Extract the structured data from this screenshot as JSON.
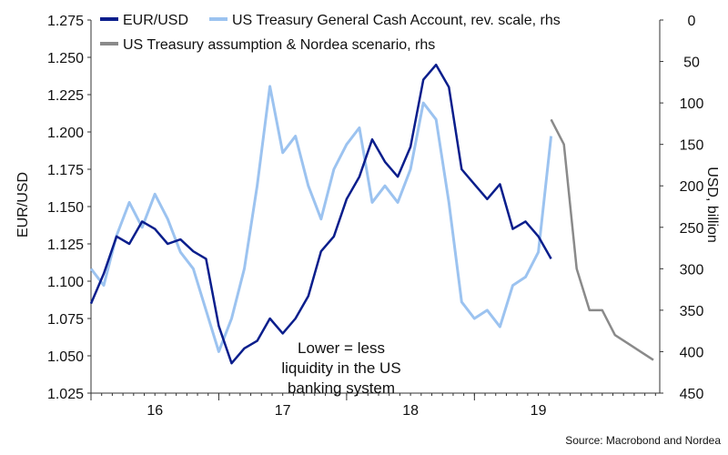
{
  "chart_data": {
    "type": "line",
    "title": "",
    "ylabel_left": "EUR/USD",
    "ylabel_right": "USD, billion",
    "ylim_left": [
      1.025,
      1.275
    ],
    "left_ticks": [
      "1.025",
      "1.050",
      "1.075",
      "1.100",
      "1.125",
      "1.150",
      "1.175",
      "1.200",
      "1.225",
      "1.250",
      "1.275"
    ],
    "ylim_right": [
      450,
      0
    ],
    "right_ticks": [
      "0",
      "50",
      "100",
      "150",
      "200",
      "250",
      "300",
      "350",
      "400",
      "450"
    ],
    "right_axis_reversed": true,
    "x_ticks": [
      "16",
      "17",
      "18",
      "19"
    ],
    "legend_position": "top-left",
    "colors": {
      "eurusd": "#0a1e8c",
      "tga": "#9cc3f0",
      "scenario": "#8a8a8a",
      "axis": "#333333"
    },
    "series": [
      {
        "name": "EUR/USD",
        "axis": "left",
        "x": [
          15.5,
          15.6,
          15.7,
          15.8,
          15.9,
          16.0,
          16.1,
          16.2,
          16.3,
          16.4,
          16.5,
          16.6,
          16.7,
          16.8,
          16.9,
          17.0,
          17.1,
          17.2,
          17.3,
          17.4,
          17.5,
          17.6,
          17.7,
          17.8,
          17.9,
          18.0,
          18.1,
          18.2,
          18.3,
          18.4,
          18.5,
          18.6,
          18.7,
          18.8,
          18.9,
          19.0,
          19.1
        ],
        "values": [
          1.085,
          1.105,
          1.13,
          1.125,
          1.14,
          1.135,
          1.125,
          1.128,
          1.12,
          1.115,
          1.07,
          1.045,
          1.055,
          1.06,
          1.075,
          1.065,
          1.075,
          1.09,
          1.12,
          1.13,
          1.155,
          1.17,
          1.195,
          1.18,
          1.17,
          1.19,
          1.235,
          1.245,
          1.23,
          1.175,
          1.165,
          1.155,
          1.165,
          1.135,
          1.14,
          1.13,
          1.115
        ]
      },
      {
        "name": "US Treasury General Cash Account, rev. scale, rhs",
        "axis": "right",
        "x": [
          15.5,
          15.6,
          15.7,
          15.8,
          15.9,
          16.0,
          16.1,
          16.2,
          16.3,
          16.4,
          16.5,
          16.6,
          16.7,
          16.8,
          16.9,
          17.0,
          17.1,
          17.2,
          17.3,
          17.4,
          17.5,
          17.6,
          17.7,
          17.8,
          17.9,
          18.0,
          18.1,
          18.2,
          18.3,
          18.4,
          18.5,
          18.6,
          18.7,
          18.8,
          18.9,
          19.0,
          19.1
        ],
        "values": [
          300,
          320,
          260,
          220,
          250,
          210,
          240,
          280,
          300,
          350,
          400,
          360,
          300,
          200,
          80,
          160,
          140,
          200,
          240,
          180,
          150,
          130,
          220,
          200,
          220,
          180,
          100,
          120,
          220,
          340,
          360,
          350,
          370,
          320,
          310,
          280,
          140
        ]
      },
      {
        "name": "US Treasury assumption & Nordea scenario, rhs",
        "axis": "right",
        "x": [
          19.1,
          19.2,
          19.3,
          19.4,
          19.5,
          19.6,
          19.7,
          19.8,
          19.9
        ],
        "values": [
          120,
          150,
          300,
          350,
          350,
          380,
          390,
          400,
          410
        ]
      }
    ],
    "annotations": [
      "Lower = less",
      "liquidity in the US",
      "banking system"
    ],
    "source": "Source: Macrobond and Nordea"
  }
}
